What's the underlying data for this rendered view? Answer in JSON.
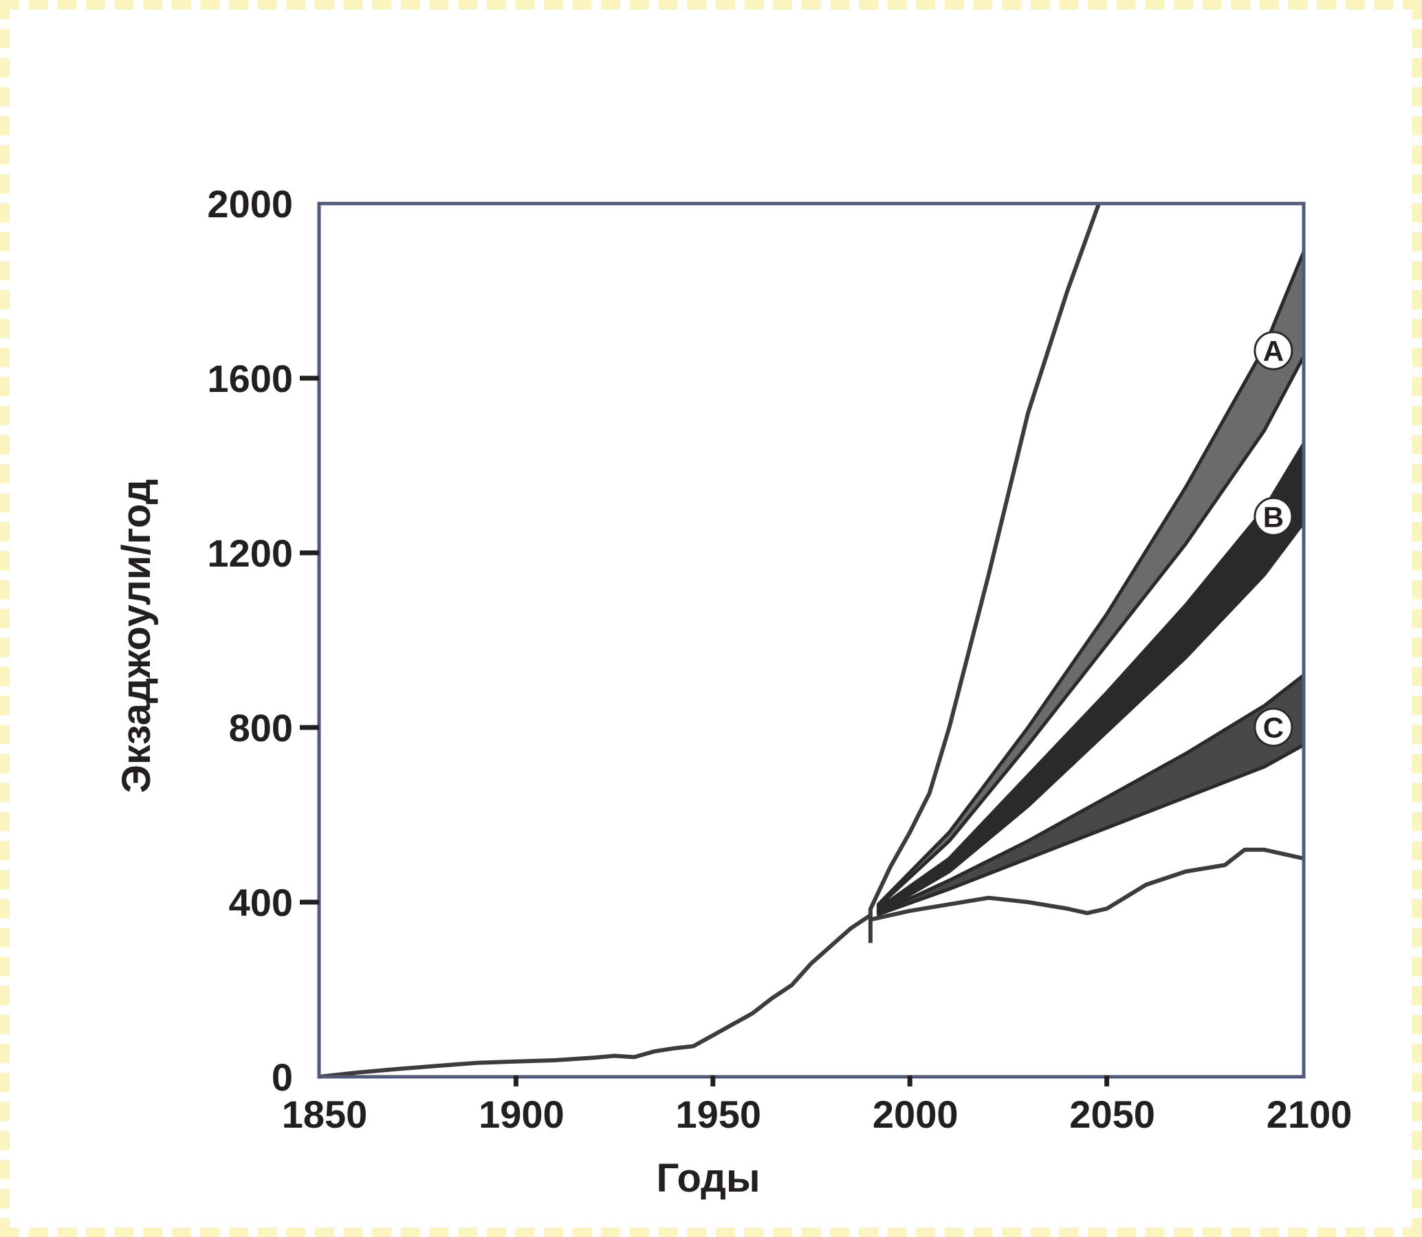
{
  "chart_data": {
    "type": "area",
    "title": "",
    "xlabel": "Годы",
    "ylabel": "Экзаджоули/год",
    "xlim": [
      1850,
      2100
    ],
    "ylim": [
      0,
      2000
    ],
    "grid": false,
    "x_ticks": [
      1850,
      1900,
      1950,
      2000,
      2050,
      2100
    ],
    "x_tick_labels": [
      "1850",
      "1900",
      "1950",
      "2000",
      "2050",
      "2100"
    ],
    "y_ticks": [
      0,
      400,
      800,
      1200,
      1600,
      2000
    ],
    "y_tick_labels": [
      "0",
      "400",
      "800",
      "1200",
      "1600",
      "2000"
    ],
    "historical": {
      "x": [
        1850,
        1860,
        1870,
        1880,
        1890,
        1900,
        1910,
        1920,
        1925,
        1930,
        1935,
        1940,
        1945,
        1950,
        1955,
        1960,
        1965,
        1970,
        1975,
        1980,
        1985,
        1990
      ],
      "values": [
        0,
        10,
        18,
        25,
        32,
        35,
        38,
        44,
        48,
        45,
        58,
        65,
        70,
        95,
        120,
        145,
        180,
        210,
        260,
        300,
        340,
        370
      ]
    },
    "envelope": {
      "upper_x": [
        1990,
        1995,
        2000,
        2005,
        2010,
        2020,
        2030,
        2040,
        2048
      ],
      "upper_values": [
        400,
        480,
        560,
        650,
        800,
        1150,
        1520,
        1800,
        2000
      ],
      "lower_x": [
        1990,
        2000,
        2010,
        2020,
        2030,
        2040,
        2045,
        2050,
        2060,
        2070,
        2080,
        2085,
        2090,
        2095,
        2100
      ],
      "lower_values": [
        360,
        380,
        395,
        410,
        400,
        385,
        375,
        385,
        440,
        470,
        485,
        520,
        520,
        510,
        500
      ]
    },
    "series": [
      {
        "name": "A",
        "x": [
          1992,
          2010,
          2030,
          2050,
          2070,
          2090,
          2100
        ],
        "upper": [
          395,
          560,
          800,
          1060,
          1350,
          1670,
          1890
        ],
        "lower": [
          390,
          540,
          760,
          990,
          1220,
          1480,
          1650
        ],
        "color": "#6b6b6b"
      },
      {
        "name": "B",
        "x": [
          1992,
          2010,
          2030,
          2050,
          2070,
          2090,
          2100
        ],
        "upper": [
          385,
          500,
          690,
          880,
          1080,
          1300,
          1450
        ],
        "lower": [
          375,
          470,
          620,
          790,
          960,
          1150,
          1270
        ],
        "color": "#2b2929"
      },
      {
        "name": "C",
        "x": [
          1992,
          2010,
          2030,
          2050,
          2070,
          2090,
          2100
        ],
        "upper": [
          375,
          450,
          540,
          640,
          740,
          850,
          920
        ],
        "lower": [
          372,
          430,
          500,
          570,
          640,
          710,
          760
        ],
        "color": "#4a4748"
      }
    ]
  }
}
